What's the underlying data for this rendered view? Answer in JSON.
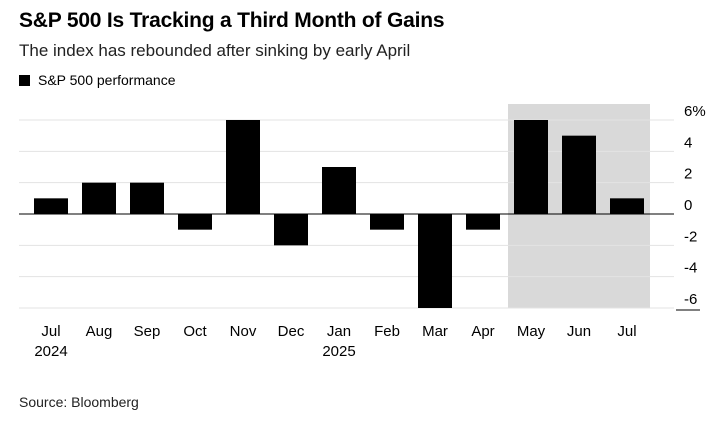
{
  "header": {
    "title": "S&P 500 Is Tracking a Third Month of Gains",
    "subtitle": "The index has rebounded after sinking by early April"
  },
  "legend": {
    "label": "S&P 500 performance",
    "color": "#000000"
  },
  "footer": {
    "source": "Source: Bloomberg"
  },
  "chart_data": {
    "type": "bar",
    "title": "S&P 500 Is Tracking a Third Month of Gains",
    "subtitle": "The index has rebounded after sinking by early April",
    "categories": [
      "Jul",
      "Aug",
      "Sep",
      "Oct",
      "Nov",
      "Dec",
      "Jan",
      "Feb",
      "Mar",
      "Apr",
      "May",
      "Jun",
      "Jul"
    ],
    "year_labels": [
      "2024",
      "",
      "",
      "",
      "",
      "",
      "2025",
      "",
      "",
      "",
      "",
      "",
      ""
    ],
    "series": [
      {
        "name": "S&P 500 performance",
        "values": [
          1.0,
          2.0,
          2.0,
          -1.0,
          6.0,
          -2.0,
          3.0,
          -1.0,
          -6.0,
          -1.0,
          6.0,
          5.0,
          1.0
        ]
      }
    ],
    "ylim": [
      -6,
      6
    ],
    "y_ticks": [
      6,
      4,
      2,
      0,
      -2,
      -4,
      -6
    ],
    "y_tick_labels": [
      "6%",
      "4",
      "2",
      "0",
      "-2",
      "-4",
      "-6"
    ],
    "y_axis_side": "right",
    "grid": true,
    "legend_position": "top-left",
    "highlight": {
      "from_index": 10,
      "to_index": 12,
      "color": "#d9d9d9"
    },
    "bar_color": "#000000",
    "xlabel": "",
    "ylabel": ""
  }
}
